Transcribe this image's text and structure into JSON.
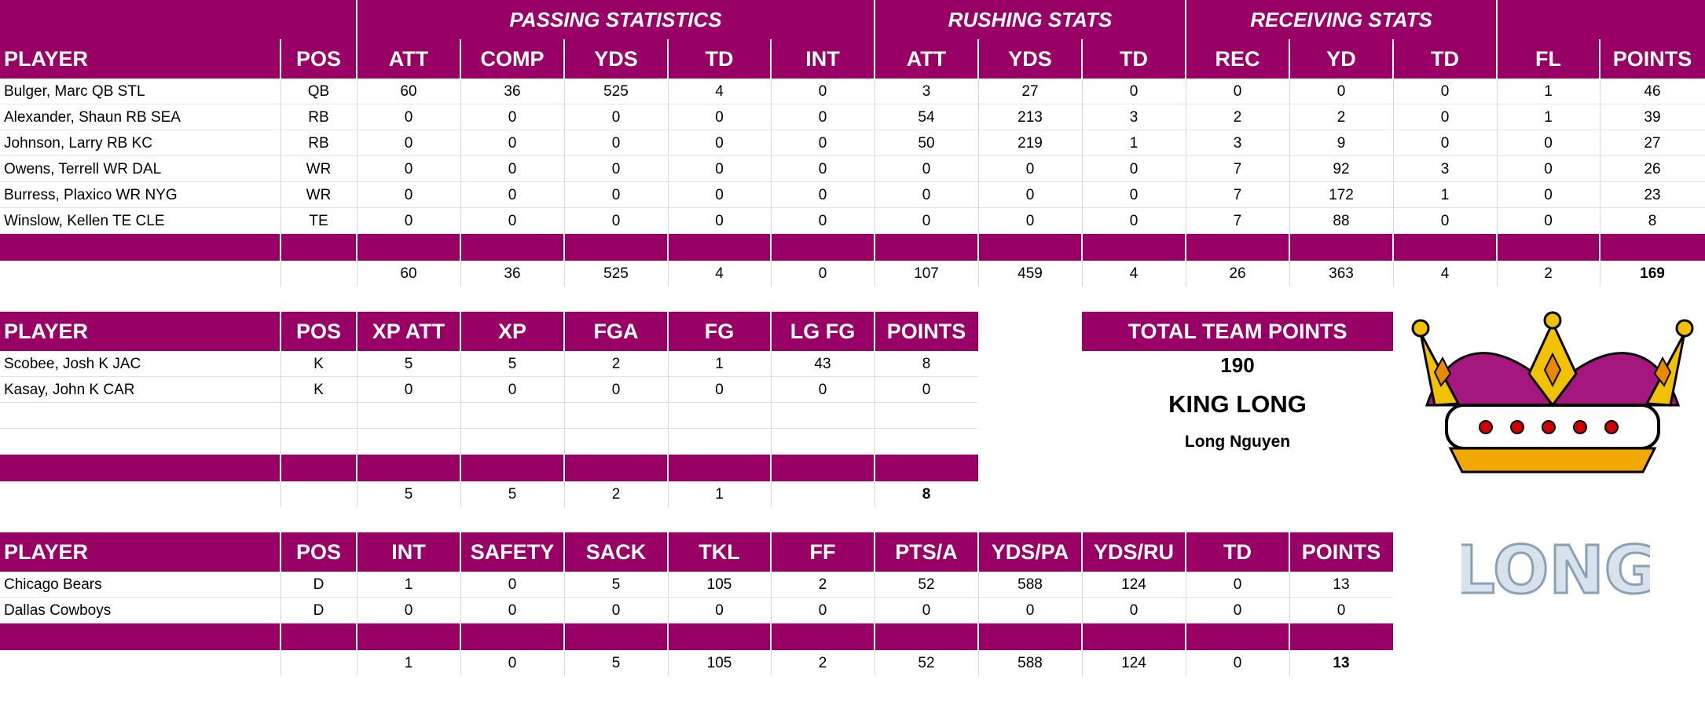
{
  "offense": {
    "groups": [
      "PASSING STATISTICS",
      "RUSHING STATS",
      "RECEIVING STATS"
    ],
    "headers": [
      "PLAYER",
      "POS",
      "ATT",
      "COMP",
      "YDS",
      "TD",
      "INT",
      "ATT",
      "YDS",
      "TD",
      "REC",
      "YD",
      "TD",
      "FL",
      "POINTS"
    ],
    "rows": [
      [
        "Bulger, Marc QB STL",
        "QB",
        "60",
        "36",
        "525",
        "4",
        "0",
        "3",
        "27",
        "0",
        "0",
        "0",
        "0",
        "1",
        "46"
      ],
      [
        "Alexander, Shaun RB SEA",
        "RB",
        "0",
        "0",
        "0",
        "0",
        "0",
        "54",
        "213",
        "3",
        "2",
        "2",
        "0",
        "1",
        "39"
      ],
      [
        "Johnson, Larry RB KC",
        "RB",
        "0",
        "0",
        "0",
        "0",
        "0",
        "50",
        "219",
        "1",
        "3",
        "9",
        "0",
        "0",
        "27"
      ],
      [
        "Owens, Terrell WR DAL",
        "WR",
        "0",
        "0",
        "0",
        "0",
        "0",
        "0",
        "0",
        "0",
        "7",
        "92",
        "3",
        "0",
        "26"
      ],
      [
        "Burress, Plaxico WR NYG",
        "WR",
        "0",
        "0",
        "0",
        "0",
        "0",
        "0",
        "0",
        "0",
        "7",
        "172",
        "1",
        "0",
        "23"
      ],
      [
        "Winslow, Kellen TE CLE",
        "TE",
        "0",
        "0",
        "0",
        "0",
        "0",
        "0",
        "0",
        "0",
        "7",
        "88",
        "0",
        "0",
        "8"
      ]
    ],
    "totals": [
      "",
      "",
      "60",
      "36",
      "525",
      "4",
      "0",
      "107",
      "459",
      "4",
      "26",
      "363",
      "4",
      "2",
      "169"
    ]
  },
  "kickers": {
    "headers": [
      "PLAYER",
      "POS",
      "XP ATT",
      "XP",
      "FGA",
      "FG",
      "LG FG",
      "POINTS"
    ],
    "rows": [
      [
        "Scobee, Josh K JAC",
        "K",
        "5",
        "5",
        "2",
        "1",
        "43",
        "8"
      ],
      [
        "Kasay, John K CAR",
        "K",
        "0",
        "0",
        "0",
        "0",
        "0",
        "0"
      ],
      [
        "",
        "",
        "",
        "",
        "",
        "",
        "",
        ""
      ],
      [
        "",
        "",
        "",
        "",
        "",
        "",
        "",
        ""
      ]
    ],
    "totals": [
      "",
      "",
      "5",
      "5",
      "2",
      "1",
      "",
      "8"
    ]
  },
  "defense": {
    "headers": [
      "PLAYER",
      "POS",
      "INT",
      "SAFETY",
      "SACK",
      "TKL",
      "FF",
      "PTS/A",
      "YDS/PA",
      "YDS/RU",
      "TD",
      "POINTS"
    ],
    "rows": [
      [
        "Chicago Bears",
        "D",
        "1",
        "0",
        "5",
        "105",
        "2",
        "52",
        "588",
        "124",
        "0",
        "13"
      ],
      [
        "Dallas Cowboys",
        "D",
        "0",
        "0",
        "0",
        "0",
        "0",
        "0",
        "0",
        "0",
        "0",
        "0"
      ]
    ],
    "totals": [
      "",
      "",
      "1",
      "0",
      "5",
      "105",
      "2",
      "52",
      "588",
      "124",
      "0",
      "13"
    ]
  },
  "team": {
    "total_label": "TOTAL TEAM POINTS",
    "total_points": "190",
    "team_name": "KING LONG",
    "owner": "Long Nguyen"
  },
  "logo": {
    "word": "LONG",
    "icon": "crown-icon"
  },
  "colors": {
    "header_bg": "#990066",
    "header_text": "#ffffff"
  }
}
